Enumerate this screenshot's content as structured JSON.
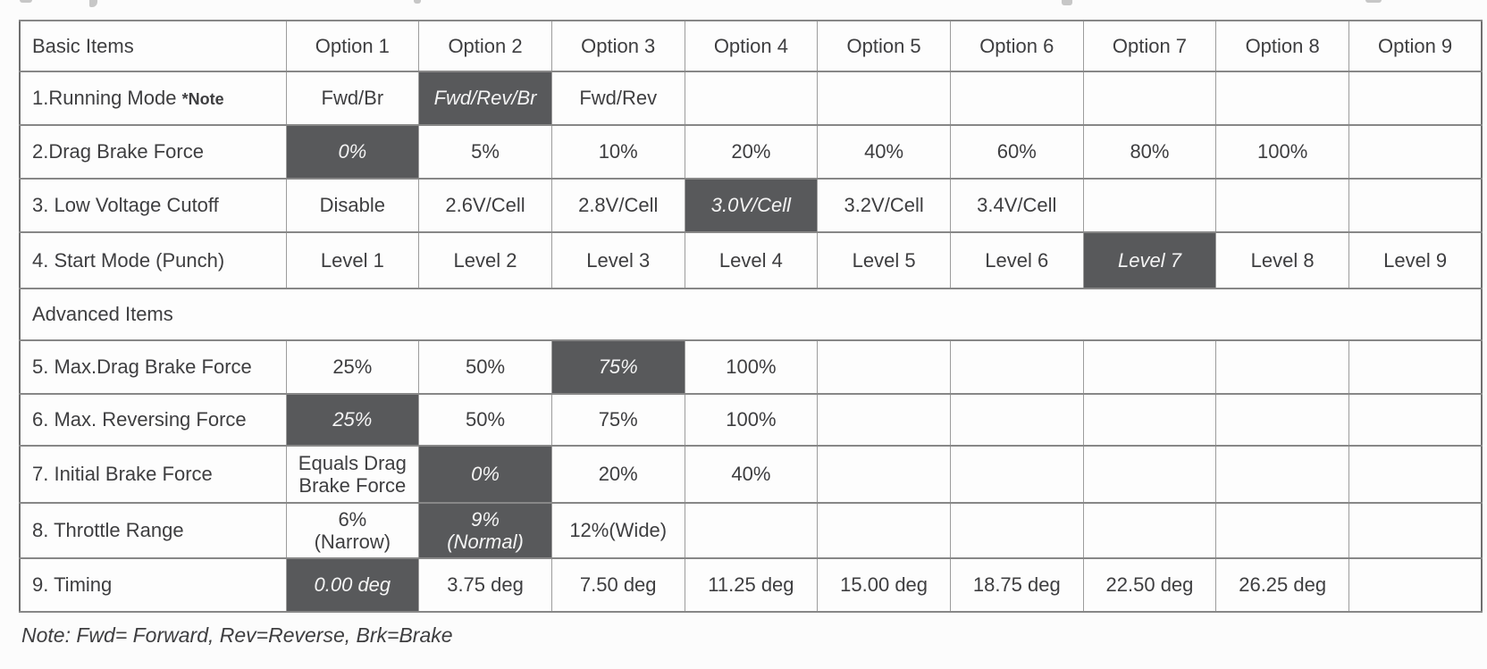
{
  "table": {
    "header": {
      "label": "Basic Items",
      "options": [
        "Option 1",
        "Option 2",
        "Option 3",
        "Option 4",
        "Option 5",
        "Option 6",
        "Option 7",
        "Option 8",
        "Option 9"
      ]
    },
    "basic_rows": [
      {
        "label": "1.Running Mode",
        "note": "*Note",
        "default_option": 2,
        "cells": [
          "Fwd/Br",
          "Fwd/Rev/Br",
          "Fwd/Rev",
          "",
          "",
          "",
          "",
          "",
          ""
        ]
      },
      {
        "label": "2.Drag Brake Force",
        "note": "",
        "default_option": 1,
        "cells": [
          "0%",
          "5%",
          "10%",
          "20%",
          "40%",
          "60%",
          "80%",
          "100%",
          ""
        ]
      },
      {
        "label": "3. Low Voltage Cutoff",
        "note": "",
        "default_option": 4,
        "cells": [
          "Disable",
          "2.6V/Cell",
          "2.8V/Cell",
          "3.0V/Cell",
          "3.2V/Cell",
          "3.4V/Cell",
          "",
          "",
          ""
        ]
      },
      {
        "label": "4. Start Mode (Punch)",
        "note": "",
        "default_option": 7,
        "cells": [
          "Level 1",
          "Level 2",
          "Level 3",
          "Level 4",
          "Level 5",
          "Level 6",
          "Level 7",
          "Level 8",
          "Level 9"
        ]
      }
    ],
    "advanced_section_label": "Advanced Items",
    "advanced_rows": [
      {
        "label": "5. Max.Drag Brake Force",
        "note": "",
        "default_option": 3,
        "cells": [
          "25%",
          "50%",
          "75%",
          "100%",
          "",
          "",
          "",
          "",
          ""
        ]
      },
      {
        "label": "6. Max. Reversing Force",
        "note": "",
        "default_option": 1,
        "cells": [
          "25%",
          "50%",
          "75%",
          "100%",
          "",
          "",
          "",
          "",
          ""
        ]
      },
      {
        "label": "7. Initial Brake Force",
        "note": "",
        "default_option": 2,
        "cells": [
          "Equals Drag\nBrake Force",
          "0%",
          "20%",
          "40%",
          "",
          "",
          "",
          "",
          ""
        ]
      },
      {
        "label": "8. Throttle Range",
        "note": "",
        "default_option": 2,
        "cells": [
          "6%\n(Narrow)",
          "9%\n(Normal)",
          "12%(Wide)",
          "",
          "",
          "",
          "",
          "",
          ""
        ]
      },
      {
        "label": "9. Timing",
        "note": "",
        "default_option": 1,
        "cells": [
          "0.00 deg",
          "3.75 deg",
          "7.50 deg",
          "11.25 deg",
          "15.00 deg",
          "18.75 deg",
          "22.50 deg",
          "26.25 deg",
          ""
        ]
      }
    ]
  },
  "footnote": "Note: Fwd= Forward, Rev=Reverse, Brk=Brake",
  "colors": {
    "default_cell_bg": "#58595b",
    "default_cell_text": "#f4f4f4",
    "text": "#3e3e40",
    "border": "#878787"
  }
}
